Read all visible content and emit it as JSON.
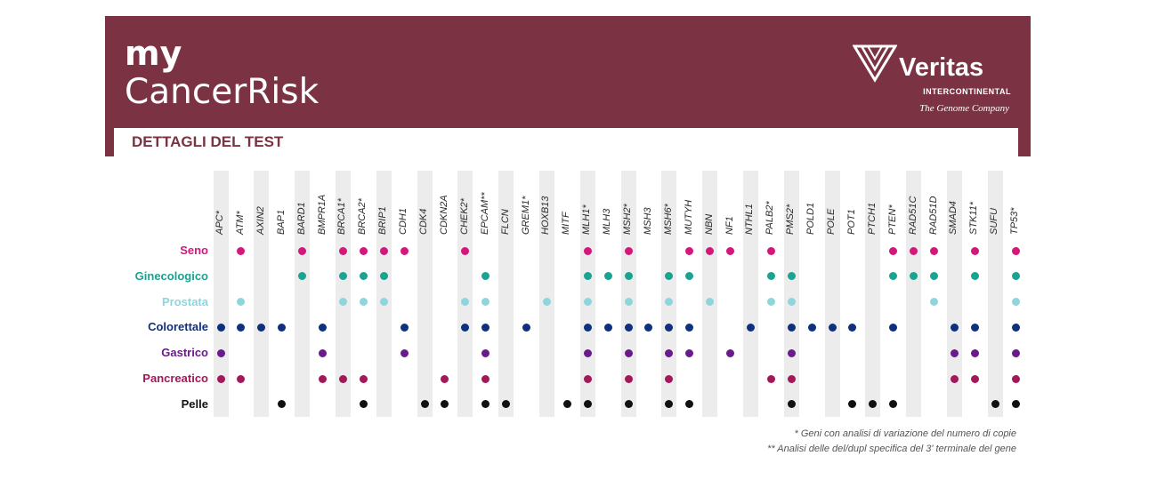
{
  "header": {
    "brand_line1": "my",
    "brand_line2": "CancerRisk",
    "logo_name": "Veritas",
    "logo_sub": "INTERCONTINENTAL",
    "logo_tag": "The Genome Company",
    "section_title": "DETTAGLI DEL TEST"
  },
  "colors": {
    "header_bg": "#7b3343",
    "Seno": "#d4177a",
    "Ginecologico": "#1aa390",
    "Prostata": "#8fd6dc",
    "Colorettale": "#0f2f7f",
    "Gastrico": "#6a1a8c",
    "Pancreatico": "#a3185a",
    "Pelle": "#111111"
  },
  "genes": [
    "APC*",
    "ATM*",
    "AXIN2",
    "BAP1",
    "BARD1",
    "BMPR1A",
    "BRCA1*",
    "BRCA2*",
    "BRIP1",
    "CDH1",
    "CDK4",
    "CDKN2A",
    "CHEK2*",
    "EPCAM**",
    "FLCN",
    "GREM1*",
    "HOXB13",
    "MITF",
    "MLH1*",
    "MLH3",
    "MSH2*",
    "MSH3",
    "MSH6*",
    "MUTYH",
    "NBN",
    "NF1",
    "NTHL1",
    "PALB2*",
    "PMS2*",
    "POLD1",
    "POLE",
    "POT1",
    "PTCH1",
    "PTEN*",
    "RAD51C",
    "RAD51D",
    "SMAD4",
    "STK11*",
    "SUFU",
    "TP53*"
  ],
  "rows": [
    {
      "name": "Seno",
      "genes": [
        "ATM*",
        "BARD1",
        "BRCA1*",
        "BRCA2*",
        "BRIP1",
        "CDH1",
        "CHEK2*",
        "MLH1*",
        "MSH2*",
        "MUTYH",
        "NBN",
        "NF1",
        "PALB2*",
        "PTEN*",
        "RAD51C",
        "RAD51D",
        "STK11*",
        "TP53*"
      ]
    },
    {
      "name": "Ginecologico",
      "genes": [
        "BARD1",
        "BRCA1*",
        "BRCA2*",
        "BRIP1",
        "EPCAM**",
        "MLH1*",
        "MLH3",
        "MSH2*",
        "MSH6*",
        "MUTYH",
        "PALB2*",
        "PMS2*",
        "PTEN*",
        "RAD51C",
        "RAD51D",
        "STK11*",
        "TP53*"
      ]
    },
    {
      "name": "Prostata",
      "genes": [
        "ATM*",
        "BRCA1*",
        "BRCA2*",
        "BRIP1",
        "CHEK2*",
        "EPCAM**",
        "HOXB13",
        "MLH1*",
        "MSH2*",
        "MSH6*",
        "NBN",
        "PALB2*",
        "PMS2*",
        "RAD51D",
        "TP53*"
      ]
    },
    {
      "name": "Colorettale",
      "genes": [
        "APC*",
        "ATM*",
        "AXIN2",
        "BAP1",
        "BMPR1A",
        "CDH1",
        "CHEK2*",
        "EPCAM**",
        "GREM1*",
        "MLH1*",
        "MLH3",
        "MSH2*",
        "MSH3",
        "MSH6*",
        "MUTYH",
        "NTHL1",
        "PMS2*",
        "POLD1",
        "POLE",
        "POT1",
        "PTEN*",
        "SMAD4",
        "STK11*",
        "TP53*"
      ]
    },
    {
      "name": "Gastrico",
      "genes": [
        "APC*",
        "BMPR1A",
        "CDH1",
        "EPCAM**",
        "MLH1*",
        "MSH2*",
        "MSH6*",
        "MUTYH",
        "NF1",
        "PMS2*",
        "SMAD4",
        "STK11*",
        "TP53*"
      ]
    },
    {
      "name": "Pancreatico",
      "genes": [
        "APC*",
        "ATM*",
        "BMPR1A",
        "BRCA1*",
        "BRCA2*",
        "CDKN2A",
        "EPCAM**",
        "MLH1*",
        "MSH2*",
        "MSH6*",
        "PALB2*",
        "PMS2*",
        "SMAD4",
        "STK11*",
        "TP53*"
      ]
    },
    {
      "name": "Pelle",
      "genes": [
        "BAP1",
        "BRCA2*",
        "CDK4",
        "CDKN2A",
        "EPCAM**",
        "FLCN",
        "MITF",
        "MLH1*",
        "MSH2*",
        "MSH6*",
        "MUTYH",
        "PMS2*",
        "POT1",
        "PTCH1",
        "PTEN*",
        "SUFU",
        "TP53*"
      ]
    }
  ],
  "footnotes": [
    "* Geni con analisi di variazione del numero di copie",
    "** Analisi delle del/dupl specifica del 3' terminale del gene"
  ]
}
